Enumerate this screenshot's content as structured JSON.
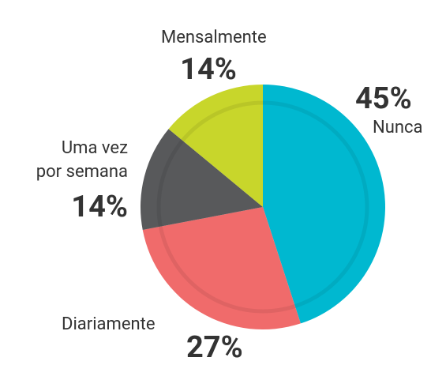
{
  "chart_data": {
    "type": "pie",
    "categories": [
      "Nunca",
      "Diariamente",
      "Uma vez\npor semana",
      "Mensalmente"
    ],
    "values": [
      45,
      27,
      14,
      14
    ],
    "value_labels": [
      "45%",
      "27%",
      "14%",
      "14%"
    ],
    "colors": [
      "#00b8d0",
      "#f06b6b",
      "#58595b",
      "#c8d62b"
    ]
  }
}
